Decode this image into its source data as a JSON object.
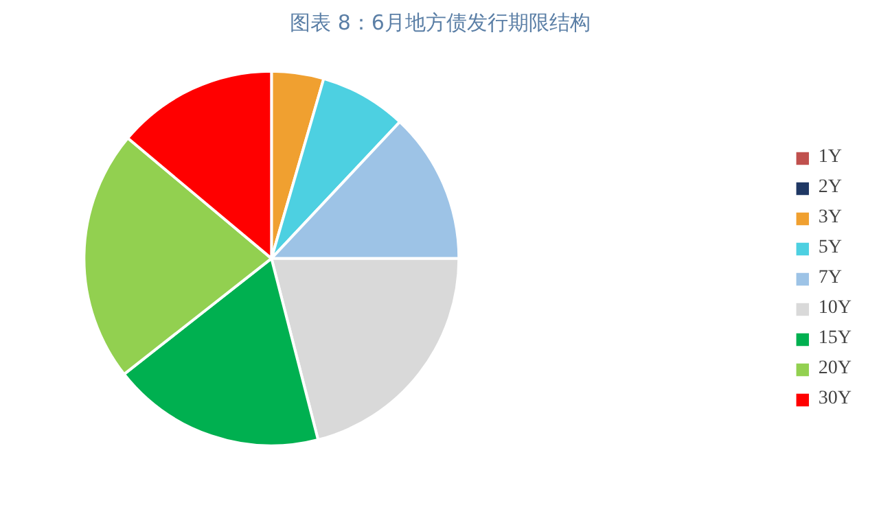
{
  "chart_data": {
    "type": "pie",
    "title": "图表 8：6月地方债发行期限结构",
    "categories": [
      "1Y",
      "2Y",
      "3Y",
      "5Y",
      "7Y",
      "10Y",
      "15Y",
      "20Y",
      "30Y"
    ],
    "values": [
      0,
      0,
      4.5,
      7.5,
      13,
      21,
      18.4,
      21.7,
      13.9
    ],
    "colors": [
      "#c0504d",
      "#1f3864",
      "#f0a030",
      "#4dd0e1",
      "#9dc3e6",
      "#d9d9d9",
      "#00b050",
      "#92d050",
      "#ff0000"
    ],
    "legend": "right"
  }
}
